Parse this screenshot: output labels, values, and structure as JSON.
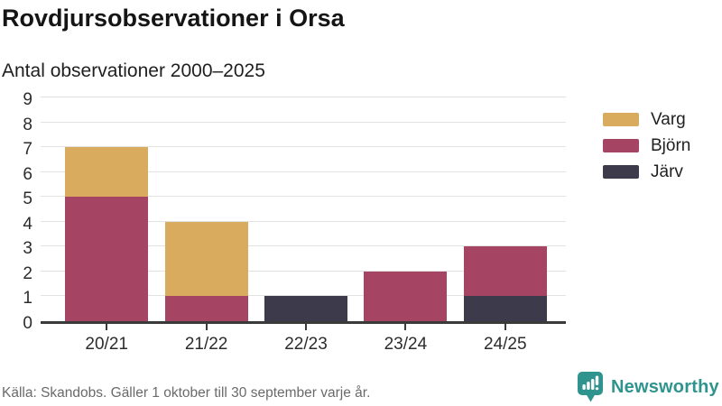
{
  "header": {
    "title": "Rovdjursobservationer i Orsa",
    "subtitle": "Antal observationer 2000–2025"
  },
  "chart_data": {
    "type": "bar",
    "stacked": true,
    "title": "Rovdjursobservationer i Orsa",
    "subtitle": "Antal observationer 2000–2025",
    "categories": [
      "20/21",
      "21/22",
      "22/23",
      "23/24",
      "24/25"
    ],
    "series": [
      {
        "name": "Varg",
        "color": "#d8ab5e",
        "values": [
          2,
          3,
          0,
          0,
          0
        ]
      },
      {
        "name": "Björn",
        "color": "#a54563",
        "values": [
          5,
          1,
          0,
          2,
          2
        ]
      },
      {
        "name": "Järv",
        "color": "#3d3a4b",
        "values": [
          0,
          0,
          1,
          0,
          1
        ]
      }
    ],
    "stack_order_bottom_to_top": [
      "Järv",
      "Björn",
      "Varg"
    ],
    "totals": [
      7,
      4,
      1,
      2,
      3
    ],
    "xlabel": "",
    "ylabel": "",
    "ylim": [
      0,
      9
    ],
    "yticks": [
      0,
      1,
      2,
      3,
      4,
      5,
      6,
      7,
      8,
      9
    ],
    "grid": true,
    "legend_position": "right"
  },
  "legend": {
    "items": [
      {
        "label": "Varg",
        "color": "#d8ab5e"
      },
      {
        "label": "Björn",
        "color": "#a54563"
      },
      {
        "label": "Järv",
        "color": "#3d3a4b"
      }
    ]
  },
  "footer": {
    "source": "Källa: Skandobs. Gäller 1 oktober till 30 september varje år."
  },
  "brand": {
    "name": "Newsworthy",
    "color": "#2f948e"
  },
  "style_colors": {
    "axis": "#3a3a3a",
    "gridline": "#e2e2e2",
    "tick_text": "#2c2c2c",
    "source_text": "#6a6a6a"
  }
}
